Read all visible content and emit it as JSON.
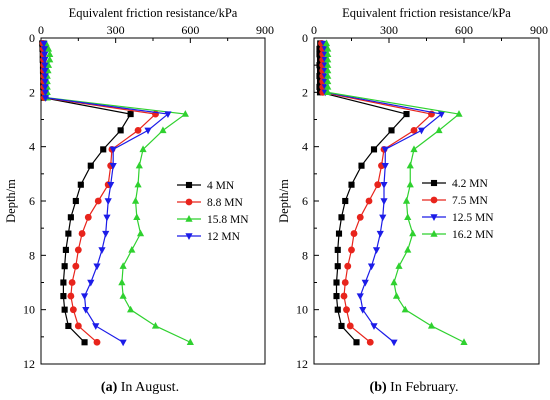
{
  "chart_data": [
    {
      "type": "line",
      "panel": "a",
      "caption_label": "(a)",
      "caption_text": " In August.",
      "xlabel": "Equivalent friction resistance/kPa",
      "ylabel": "Depth/m",
      "xlim": [
        0,
        900
      ],
      "ylim": [
        12,
        0
      ],
      "xticks": [
        "0",
        "300",
        "600",
        "900"
      ],
      "yticks": [
        "0",
        "2",
        "4",
        "6",
        "8",
        "10",
        "12"
      ],
      "legend_position": "right-middle",
      "series": [
        {
          "name": "4 MN",
          "color": "#000000",
          "marker": "square",
          "points": [
            [
              5,
              0.2
            ],
            [
              6,
              0.4
            ],
            [
              7,
              0.6
            ],
            [
              7,
              0.8
            ],
            [
              8,
              1.0
            ],
            [
              8,
              1.2
            ],
            [
              9,
              1.4
            ],
            [
              9,
              1.6
            ],
            [
              9,
              1.8
            ],
            [
              10,
              2.0
            ],
            [
              10,
              2.2
            ],
            [
              360,
              2.8
            ],
            [
              320,
              3.4
            ],
            [
              250,
              4.1
            ],
            [
              200,
              4.7
            ],
            [
              160,
              5.4
            ],
            [
              140,
              6.0
            ],
            [
              120,
              6.6
            ],
            [
              110,
              7.2
            ],
            [
              100,
              7.8
            ],
            [
              95,
              8.4
            ],
            [
              90,
              9.0
            ],
            [
              90,
              9.5
            ],
            [
              95,
              10.0
            ],
            [
              110,
              10.6
            ],
            [
              175,
              11.2
            ]
          ]
        },
        {
          "name": "8.8 MN",
          "color": "#e8241c",
          "marker": "circle",
          "points": [
            [
              8,
              0.2
            ],
            [
              9,
              0.4
            ],
            [
              10,
              0.6
            ],
            [
              10,
              0.8
            ],
            [
              11,
              1.0
            ],
            [
              11,
              1.2
            ],
            [
              12,
              1.4
            ],
            [
              12,
              1.6
            ],
            [
              12,
              1.8
            ],
            [
              13,
              2.0
            ],
            [
              13,
              2.2
            ],
            [
              460,
              2.8
            ],
            [
              390,
              3.4
            ],
            [
              285,
              4.1
            ],
            [
              280,
              4.7
            ],
            [
              270,
              5.4
            ],
            [
              230,
              6.0
            ],
            [
              190,
              6.6
            ],
            [
              165,
              7.2
            ],
            [
              150,
              7.8
            ],
            [
              140,
              8.4
            ],
            [
              125,
              9.0
            ],
            [
              120,
              9.5
            ],
            [
              130,
              10.0
            ],
            [
              150,
              10.6
            ],
            [
              225,
              11.2
            ]
          ]
        },
        {
          "name": "15.8 MN",
          "color": "#2fd12f",
          "marker": "triangle-up",
          "points": [
            [
              20,
              0.2
            ],
            [
              30,
              0.4
            ],
            [
              35,
              0.6
            ],
            [
              35,
              0.8
            ],
            [
              30,
              1.0
            ],
            [
              28,
              1.2
            ],
            [
              25,
              1.4
            ],
            [
              25,
              1.6
            ],
            [
              25,
              1.8
            ],
            [
              25,
              2.0
            ],
            [
              25,
              2.2
            ],
            [
              580,
              2.8
            ],
            [
              490,
              3.4
            ],
            [
              410,
              4.1
            ],
            [
              395,
              4.7
            ],
            [
              390,
              5.4
            ],
            [
              380,
              6.0
            ],
            [
              385,
              6.6
            ],
            [
              400,
              7.2
            ],
            [
              365,
              7.8
            ],
            [
              330,
              8.4
            ],
            [
              325,
              9.0
            ],
            [
              330,
              9.5
            ],
            [
              360,
              10.0
            ],
            [
              460,
              10.6
            ],
            [
              600,
              11.2
            ]
          ]
        },
        {
          "name": "12 MN",
          "color": "#1c1ce8",
          "marker": "triangle-down",
          "points": [
            [
              12,
              0.2
            ],
            [
              14,
              0.4
            ],
            [
              15,
              0.6
            ],
            [
              15,
              0.8
            ],
            [
              16,
              1.0
            ],
            [
              16,
              1.2
            ],
            [
              17,
              1.4
            ],
            [
              17,
              1.6
            ],
            [
              17,
              1.8
            ],
            [
              18,
              2.0
            ],
            [
              18,
              2.2
            ],
            [
              510,
              2.8
            ],
            [
              430,
              3.4
            ],
            [
              290,
              4.1
            ],
            [
              290,
              4.7
            ],
            [
              280,
              5.4
            ],
            [
              270,
              6.0
            ],
            [
              265,
              6.6
            ],
            [
              260,
              7.2
            ],
            [
              245,
              7.8
            ],
            [
              225,
              8.4
            ],
            [
              200,
              9.0
            ],
            [
              175,
              9.5
            ],
            [
              180,
              10.0
            ],
            [
              220,
              10.6
            ],
            [
              330,
              11.2
            ]
          ]
        }
      ]
    },
    {
      "type": "line",
      "panel": "b",
      "caption_label": "(b)",
      "caption_text": " In February.",
      "xlabel": "Equivalent friction resistance/kPa",
      "ylabel": "Depth/m",
      "xlim": [
        0,
        900
      ],
      "ylim": [
        12,
        0
      ],
      "xticks": [
        "0",
        "300",
        "600",
        "900"
      ],
      "yticks": [
        "0",
        "2",
        "4",
        "6",
        "8",
        "10",
        "12"
      ],
      "legend_position": "right-middle",
      "series": [
        {
          "name": "4.2 MN",
          "color": "#000000",
          "marker": "square",
          "points": [
            [
              25,
              0.2
            ],
            [
              22,
              0.4
            ],
            [
              22,
              0.6
            ],
            [
              24,
              0.8
            ],
            [
              22,
              1.0
            ],
            [
              24,
              1.2
            ],
            [
              22,
              1.4
            ],
            [
              24,
              1.6
            ],
            [
              22,
              1.8
            ],
            [
              24,
              2.0
            ],
            [
              370,
              2.8
            ],
            [
              310,
              3.4
            ],
            [
              240,
              4.1
            ],
            [
              190,
              4.7
            ],
            [
              150,
              5.4
            ],
            [
              125,
              6.0
            ],
            [
              110,
              6.6
            ],
            [
              100,
              7.2
            ],
            [
              95,
              7.8
            ],
            [
              95,
              8.4
            ],
            [
              90,
              9.0
            ],
            [
              90,
              9.5
            ],
            [
              95,
              10.0
            ],
            [
              110,
              10.6
            ],
            [
              170,
              11.2
            ]
          ]
        },
        {
          "name": "7.5 MN",
          "color": "#e8241c",
          "marker": "circle",
          "points": [
            [
              30,
              0.2
            ],
            [
              35,
              0.4
            ],
            [
              35,
              0.6
            ],
            [
              35,
              0.8
            ],
            [
              35,
              1.0
            ],
            [
              35,
              1.2
            ],
            [
              35,
              1.4
            ],
            [
              35,
              1.6
            ],
            [
              35,
              1.8
            ],
            [
              35,
              2.0
            ],
            [
              470,
              2.8
            ],
            [
              400,
              3.4
            ],
            [
              280,
              4.1
            ],
            [
              270,
              4.7
            ],
            [
              255,
              5.4
            ],
            [
              220,
              6.0
            ],
            [
              185,
              6.6
            ],
            [
              160,
              7.2
            ],
            [
              150,
              7.8
            ],
            [
              135,
              8.4
            ],
            [
              125,
              9.0
            ],
            [
              120,
              9.5
            ],
            [
              130,
              10.0
            ],
            [
              145,
              10.6
            ],
            [
              225,
              11.2
            ]
          ]
        },
        {
          "name": "12.5 MN",
          "color": "#1c1ce8",
          "marker": "triangle-down",
          "points": [
            [
              40,
              0.2
            ],
            [
              45,
              0.4
            ],
            [
              45,
              0.6
            ],
            [
              45,
              0.8
            ],
            [
              45,
              1.0
            ],
            [
              45,
              1.2
            ],
            [
              45,
              1.4
            ],
            [
              45,
              1.6
            ],
            [
              45,
              1.8
            ],
            [
              45,
              2.0
            ],
            [
              510,
              2.8
            ],
            [
              430,
              3.4
            ],
            [
              285,
              4.1
            ],
            [
              285,
              4.7
            ],
            [
              280,
              5.4
            ],
            [
              280,
              6.0
            ],
            [
              275,
              6.6
            ],
            [
              265,
              7.2
            ],
            [
              250,
              7.8
            ],
            [
              230,
              8.4
            ],
            [
              205,
              9.0
            ],
            [
              185,
              9.5
            ],
            [
              195,
              10.0
            ],
            [
              240,
              10.6
            ],
            [
              320,
              11.2
            ]
          ]
        },
        {
          "name": "16.2 MN",
          "color": "#2fd12f",
          "marker": "triangle-up",
          "points": [
            [
              50,
              0.2
            ],
            [
              55,
              0.4
            ],
            [
              55,
              0.6
            ],
            [
              55,
              0.8
            ],
            [
              55,
              1.0
            ],
            [
              55,
              1.2
            ],
            [
              55,
              1.4
            ],
            [
              55,
              1.6
            ],
            [
              55,
              1.8
            ],
            [
              55,
              2.0
            ],
            [
              580,
              2.8
            ],
            [
              500,
              3.4
            ],
            [
              400,
              4.1
            ],
            [
              385,
              4.7
            ],
            [
              385,
              5.4
            ],
            [
              370,
              6.0
            ],
            [
              375,
              6.6
            ],
            [
              395,
              7.2
            ],
            [
              375,
              7.8
            ],
            [
              340,
              8.4
            ],
            [
              320,
              9.0
            ],
            [
              330,
              9.5
            ],
            [
              365,
              10.0
            ],
            [
              470,
              10.6
            ],
            [
              600,
              11.2
            ]
          ]
        }
      ]
    }
  ]
}
